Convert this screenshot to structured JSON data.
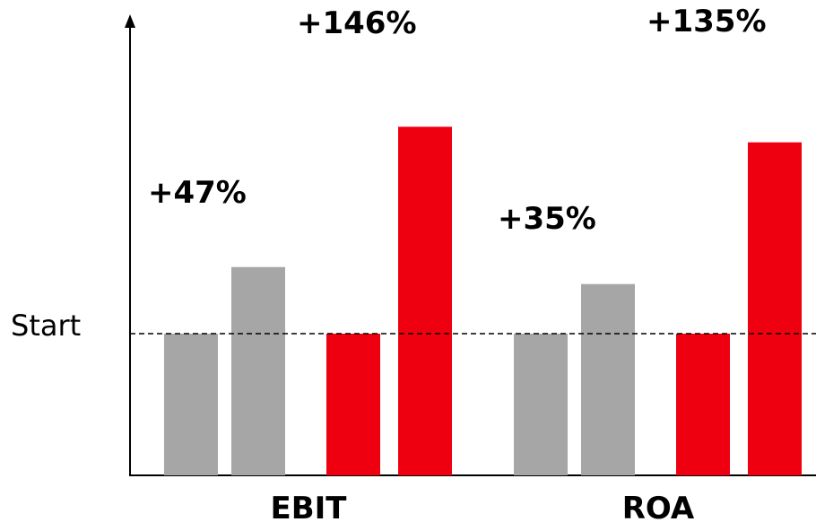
{
  "chart_data": {
    "type": "bar",
    "categories": [
      "EBIT",
      "ROA"
    ],
    "baseline_label": "Start",
    "baseline_value": 100,
    "ylim": [
      0,
      270
    ],
    "colors": {
      "gray": "#a6a6a6",
      "red": "#ee0011",
      "axis": "#000000"
    },
    "groups": [
      {
        "label": "EBIT",
        "bars": [
          {
            "value": 100,
            "color": "gray"
          },
          {
            "value": 147,
            "color": "gray"
          },
          {
            "value": 100,
            "color": "red"
          },
          {
            "value": 246,
            "color": "red"
          }
        ],
        "annotations": [
          "+47%",
          "+146%"
        ]
      },
      {
        "label": "ROA",
        "bars": [
          {
            "value": 100,
            "color": "gray"
          },
          {
            "value": 135,
            "color": "gray"
          },
          {
            "value": 100,
            "color": "red"
          },
          {
            "value": 235,
            "color": "red"
          }
        ],
        "annotations": [
          "+35%",
          "+135%"
        ]
      }
    ]
  }
}
